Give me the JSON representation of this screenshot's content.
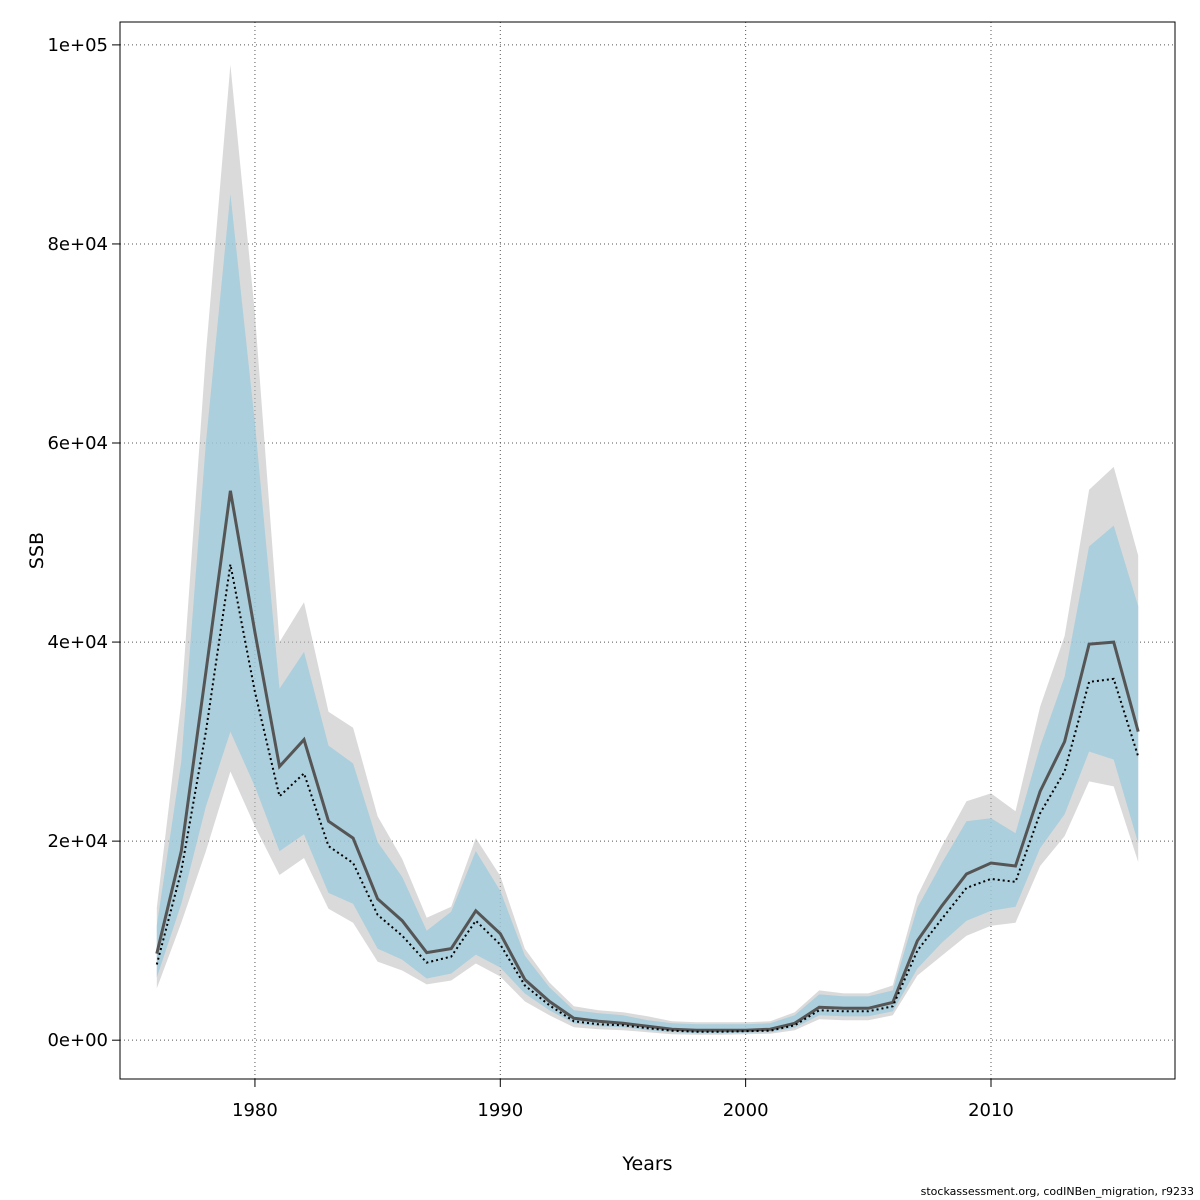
{
  "chart_data": {
    "type": "line",
    "xlabel": "Years",
    "ylabel": "SSB",
    "xlim": [
      1974.5,
      2017.5
    ],
    "ylim": [
      -3900,
      102300
    ],
    "x_ticks": [
      1980,
      1990,
      2000,
      2010
    ],
    "x_tick_labels": [
      "1980",
      "1990",
      "2000",
      "2010"
    ],
    "y_ticks": [
      0,
      20000,
      40000,
      60000,
      80000,
      100000
    ],
    "y_tick_labels": [
      "0e+00",
      "2e+04",
      "4e+04",
      "6e+04",
      "8e+04",
      "1e+05"
    ],
    "grid": true,
    "colors": {
      "band_grey": "#bbbbbb",
      "band_blue": "#87ceeb",
      "line_grey": "#555555",
      "line_dotted": "#000000",
      "grid": "#555555"
    },
    "x": [
      1976,
      1977,
      1978,
      1979,
      1980,
      1981,
      1982,
      1983,
      1984,
      1985,
      1986,
      1987,
      1988,
      1989,
      1990,
      1991,
      1992,
      1993,
      1994,
      1995,
      1996,
      1997,
      1998,
      1999,
      2000,
      2001,
      2002,
      2003,
      2004,
      2005,
      2006,
      2007,
      2008,
      2009,
      2010,
      2011,
      2012,
      2013,
      2014,
      2015,
      2016
    ],
    "series": [
      {
        "estimate": [
          8700,
          19000,
          37000,
          55200,
          41000,
          27500,
          30200,
          22000,
          20300,
          14200,
          12000,
          8800,
          9200,
          13000,
          10700,
          6100,
          3900,
          2200,
          1900,
          1700,
          1400,
          1100,
          1000,
          1000,
          1000,
          1100,
          1700,
          3300,
          3200,
          3200,
          3800,
          10000,
          13500,
          16700,
          17800,
          17500,
          25000,
          30000,
          39800,
          40000,
          31000
        ],
        "lower": [
          5200,
          11800,
          19000,
          27000,
          21500,
          16600,
          18300,
          13200,
          11800,
          7900,
          7000,
          5600,
          6000,
          7700,
          6400,
          3900,
          2500,
          1300,
          1100,
          1000,
          800,
          600,
          550,
          550,
          600,
          650,
          1000,
          2100,
          2000,
          2000,
          2500,
          6500,
          8500,
          10500,
          11500,
          11800,
          17500,
          20500,
          26000,
          25500,
          17900
        ],
        "upper": [
          13300,
          34000,
          69000,
          98000,
          73000,
          40000,
          44000,
          33000,
          31400,
          22500,
          18200,
          12300,
          13400,
          20300,
          16500,
          9200,
          5800,
          3400,
          3000,
          2800,
          2400,
          1900,
          1800,
          1800,
          1800,
          1900,
          2800,
          5000,
          4700,
          4700,
          5500,
          14500,
          19500,
          24000,
          24800,
          23000,
          33500,
          40600,
          55300,
          57600,
          48700
        ]
      },
      {
        "estimate": [
          7600,
          17000,
          31000,
          47800,
          35000,
          24500,
          26800,
          19500,
          17800,
          12600,
          10500,
          7800,
          8400,
          12000,
          9600,
          5500,
          3500,
          1900,
          1600,
          1500,
          1200,
          950,
          850,
          850,
          900,
          950,
          1500,
          3000,
          2900,
          2900,
          3400,
          9000,
          12200,
          15300,
          16200,
          15900,
          22800,
          27000,
          36000,
          36300,
          28500
        ],
        "lower": [
          6300,
          13700,
          23500,
          31000,
          25500,
          19000,
          20700,
          14800,
          13700,
          9200,
          8100,
          6200,
          6700,
          8600,
          7300,
          4700,
          3000,
          1700,
          1400,
          1300,
          1000,
          800,
          700,
          700,
          750,
          800,
          1250,
          2500,
          2400,
          2400,
          2900,
          7200,
          9800,
          12000,
          13000,
          13400,
          19300,
          22700,
          29000,
          28200,
          19800
        ],
        "upper": [
          11500,
          28000,
          60000,
          85000,
          62000,
          35300,
          39000,
          29600,
          27800,
          19900,
          16400,
          11000,
          12900,
          19000,
          15000,
          8500,
          5300,
          3000,
          2700,
          2500,
          2000,
          1700,
          1600,
          1600,
          1600,
          1700,
          2500,
          4600,
          4400,
          4400,
          5000,
          13300,
          17800,
          22000,
          22300,
          20800,
          29500,
          36500,
          49600,
          51700,
          43600
        ]
      }
    ]
  },
  "footer": {
    "credit": "stockassessment.org, codINBen_migration, r9233"
  }
}
